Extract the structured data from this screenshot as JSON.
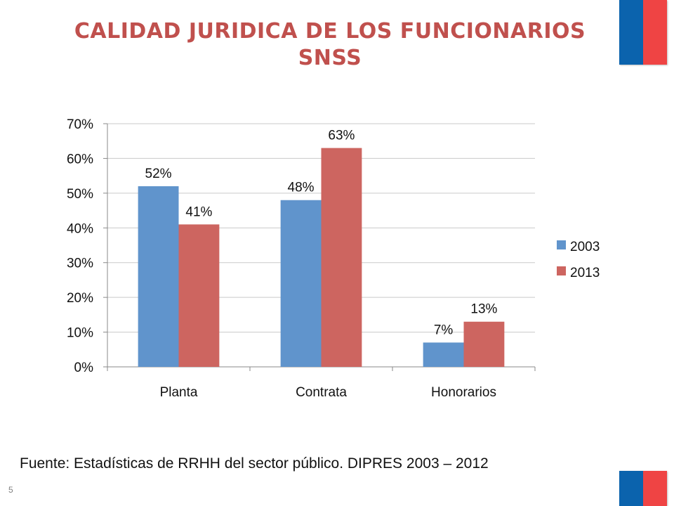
{
  "title_line1": "CALIDAD JURIDICA DE LOS FUNCIONARIOS",
  "title_line2": "SNSS",
  "source": "Fuente: Estadísticas de RRHH del sector público. DIPRES 2003 – 2012",
  "page_number": "5",
  "colors": {
    "title": "#c0504d",
    "flag_blue": "#0b63ad",
    "flag_red": "#ef4444",
    "series_2003": "#6094cc",
    "series_2013": "#cd6560",
    "grid": "#c9c9c9"
  },
  "chart_data": {
    "type": "bar",
    "categories": [
      "Planta",
      "Contrata",
      "Honorarios"
    ],
    "series": [
      {
        "name": "2003",
        "values": [
          52,
          48,
          7
        ],
        "labels": [
          "52%",
          "48%",
          "7%"
        ]
      },
      {
        "name": "2013",
        "values": [
          41,
          63,
          13
        ],
        "labels": [
          "41%",
          "63%",
          "13%"
        ]
      }
    ],
    "yticks": [
      "0%",
      "10%",
      "20%",
      "30%",
      "40%",
      "50%",
      "60%",
      "70%"
    ],
    "ylim": [
      0,
      70
    ],
    "grid": true,
    "legend": "right"
  }
}
